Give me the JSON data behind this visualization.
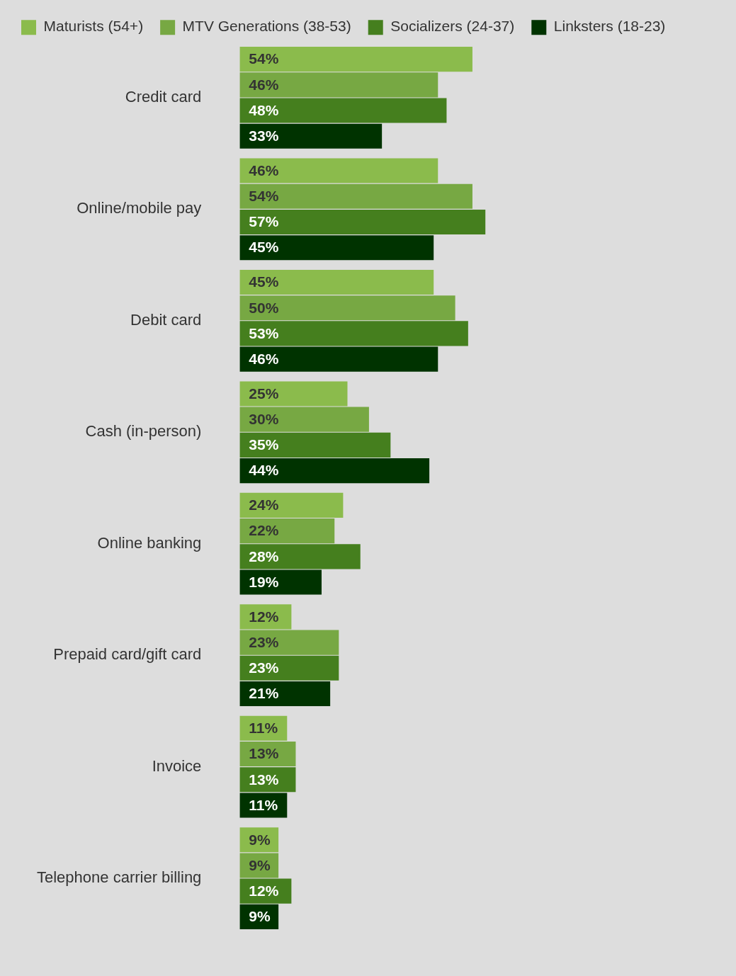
{
  "chart_data": {
    "type": "bar",
    "orientation": "horizontal",
    "legend": "top",
    "categories": [
      "Credit card",
      "Online/mobile pay",
      "Debit card",
      "Cash (in-person)",
      "Online banking",
      "Prepaid card/gift card",
      "Invoice",
      "Telephone carrier billing"
    ],
    "series": [
      {
        "name": "Maturists (54+)",
        "color": "#8bbb4c",
        "values": [
          54,
          46,
          45,
          25,
          24,
          12,
          11,
          9
        ],
        "value_labels": [
          "54%",
          "46%",
          "45%",
          "25%",
          "24%",
          "12%",
          "11%",
          "9%"
        ]
      },
      {
        "name": "MTV Generations (38-53)",
        "color": "#77a843",
        "values": [
          46,
          54,
          50,
          30,
          22,
          23,
          13,
          9
        ],
        "value_labels": [
          "46%",
          "54%",
          "50%",
          "30%",
          "22%",
          "23%",
          "13%",
          "9%"
        ]
      },
      {
        "name": "Socializers (24-37)",
        "color": "#457f1e",
        "values": [
          48,
          57,
          53,
          35,
          28,
          23,
          13,
          12
        ],
        "value_labels": [
          "48%",
          "57%",
          "53%",
          "35%",
          "28%",
          "23%",
          "13%",
          "12%"
        ]
      },
      {
        "name": "Linksters (18-23)",
        "color": "#003300",
        "values": [
          33,
          45,
          46,
          44,
          19,
          21,
          11,
          9
        ],
        "value_labels": [
          "33%",
          "45%",
          "46%",
          "44%",
          "19%",
          "21%",
          "11%",
          "9%"
        ]
      }
    ]
  }
}
